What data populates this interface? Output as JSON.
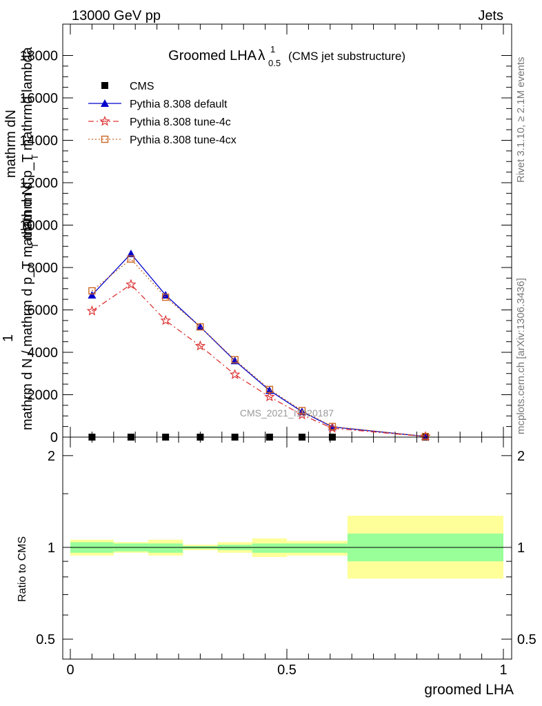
{
  "header": {
    "left": "13000 GeV pp",
    "right": "Jets"
  },
  "title": {
    "main": "Groomed LHA",
    "lambda": "λ",
    "sup": "1",
    "sub": "0.5",
    "suffix": "(CMS jet substructure)"
  },
  "side_texts": {
    "rivet": "Rivet 3.1.10, ≥ 2.1M events",
    "mcplots": "mcplots.cern.ch [arXiv:1306.3436]"
  },
  "watermark": "CMS_2021_I1920187",
  "ylabel": {
    "numerator": "1",
    "denominator": "mathrm d N / mathrm d p_T mathrm d N",
    "garbled_line1": "mathrm dN",
    "garbled_line2": "mathrm d p_T mathrmd lambda",
    "subscript_T": "T"
  },
  "legend": [
    {
      "label": "CMS",
      "color": "#000000",
      "marker": "square"
    },
    {
      "label": "Pythia 8.308 default",
      "color": "#0000cc",
      "marker": "triangle"
    },
    {
      "label": "Pythia 8.308 tune-4c",
      "color": "#dd3333",
      "marker": "star"
    },
    {
      "label": "Pythia 8.308 tune-4cx",
      "color": "#cc6622",
      "marker": "open-square"
    }
  ],
  "chart_data": [
    {
      "type": "line",
      "panel": "main",
      "xlim": [
        0,
        1
      ],
      "ylim": [
        0,
        19500
      ],
      "y_ticks": [
        0,
        2000,
        4000,
        6000,
        8000,
        10000,
        12000,
        14000,
        16000,
        18000
      ],
      "y_tick_labels": [
        "0",
        "2000",
        "4000",
        "6000",
        "8000",
        "10000",
        "12000",
        "14000",
        "16000",
        "18000"
      ],
      "x": [
        0.05,
        0.14,
        0.22,
        0.3,
        0.38,
        0.46,
        0.535,
        0.605,
        0.82
      ],
      "series": [
        {
          "name": "CMS",
          "values": [
            0,
            0,
            0,
            0,
            0,
            0,
            0,
            0,
            0
          ]
        },
        {
          "name": "Pythia 8.308 default",
          "values": [
            6700,
            8650,
            6700,
            5200,
            3600,
            2200,
            1200,
            480,
            30
          ]
        },
        {
          "name": "Pythia 8.308 tune-4c",
          "values": [
            5950,
            7200,
            5500,
            4300,
            2950,
            1900,
            1050,
            420,
            25
          ]
        },
        {
          "name": "Pythia 8.308 tune-4cx",
          "values": [
            6900,
            8400,
            6600,
            5200,
            3650,
            2250,
            1250,
            500,
            30
          ]
        }
      ]
    },
    {
      "type": "area",
      "panel": "ratio",
      "ylabel": "Ratio to CMS",
      "xlabel": "groomed LHA",
      "xlim": [
        0,
        1
      ],
      "ylim": [
        0.43,
        2.3
      ],
      "y_scale": "log",
      "y_ticks": [
        0.5,
        1,
        2
      ],
      "y_tick_labels": [
        "0.5",
        "1",
        "2"
      ],
      "x_ticks": [
        0,
        0.5,
        1
      ],
      "x_tick_labels": [
        "0",
        "0.5",
        "1"
      ],
      "bins": [
        {
          "x0": 0.0,
          "x1": 0.1,
          "stat": [
            0.96,
            1.04
          ],
          "total": [
            0.94,
            1.06
          ]
        },
        {
          "x0": 0.1,
          "x1": 0.18,
          "stat": [
            0.97,
            1.03
          ],
          "total": [
            0.96,
            1.04
          ]
        },
        {
          "x0": 0.18,
          "x1": 0.26,
          "stat": [
            0.96,
            1.03
          ],
          "total": [
            0.94,
            1.06
          ]
        },
        {
          "x0": 0.26,
          "x1": 0.34,
          "stat": [
            0.99,
            1.01
          ],
          "total": [
            0.98,
            1.02
          ]
        },
        {
          "x0": 0.34,
          "x1": 0.42,
          "stat": [
            0.98,
            1.02
          ],
          "total": [
            0.96,
            1.04
          ]
        },
        {
          "x0": 0.42,
          "x1": 0.5,
          "stat": [
            0.96,
            1.03
          ],
          "total": [
            0.93,
            1.07
          ]
        },
        {
          "x0": 0.5,
          "x1": 0.64,
          "stat": [
            0.96,
            1.03
          ],
          "total": [
            0.94,
            1.05
          ]
        },
        {
          "x0": 0.64,
          "x1": 1.0,
          "stat": [
            0.9,
            1.11
          ],
          "total": [
            0.79,
            1.27
          ]
        }
      ]
    }
  ],
  "colors": {
    "stat_band": "#99ff99",
    "total_band": "#ffff99",
    "frame": "#000000"
  }
}
